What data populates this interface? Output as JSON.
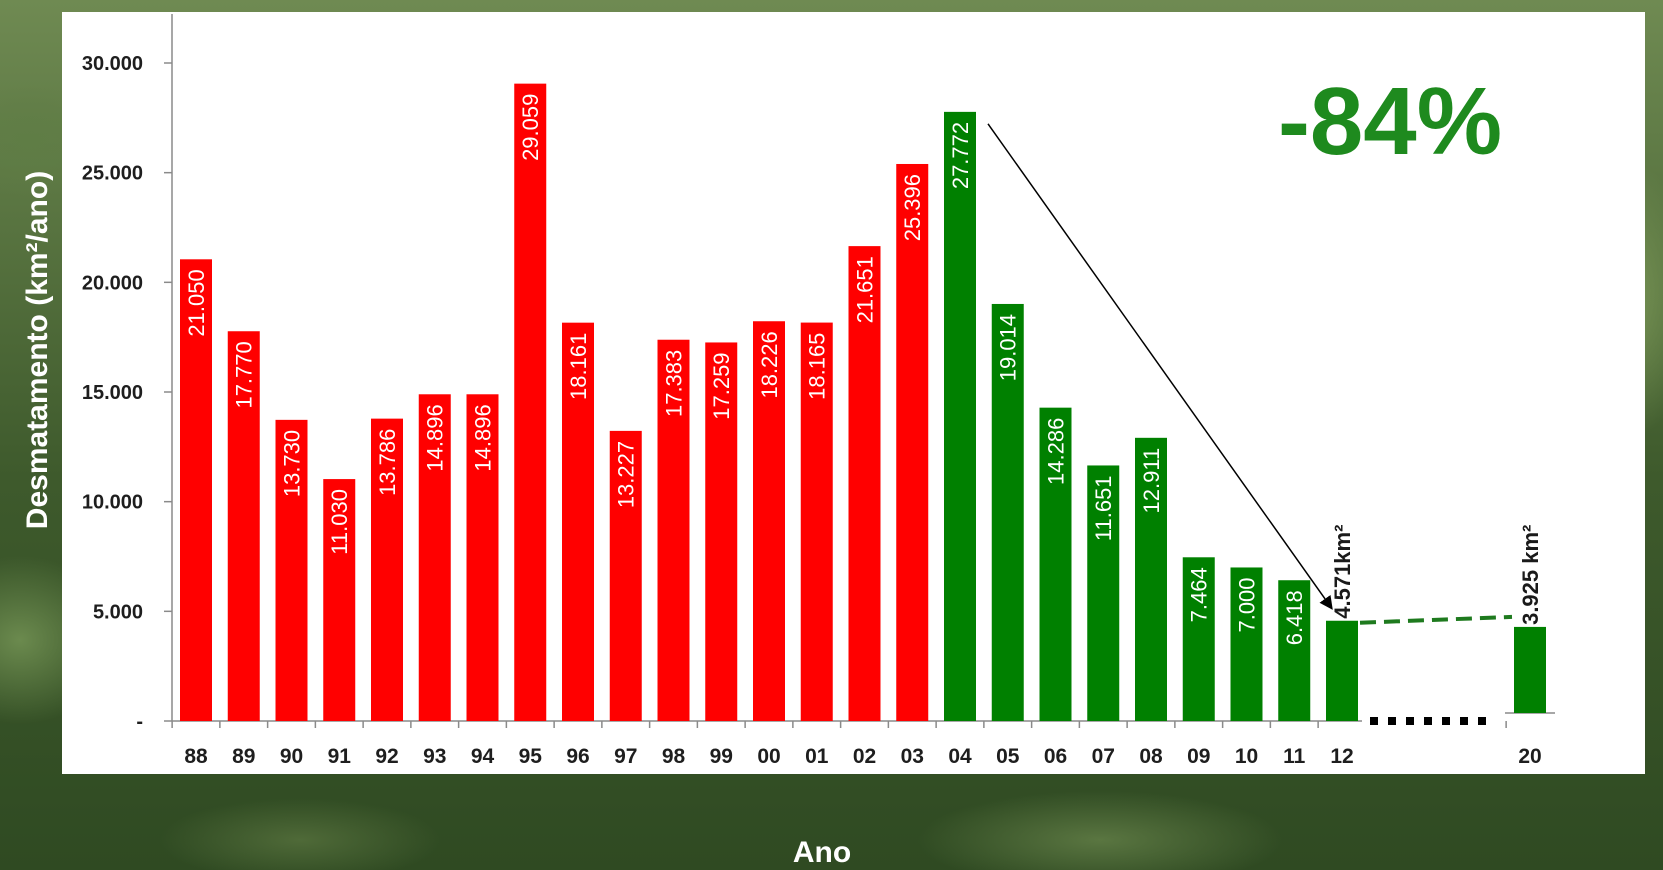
{
  "chart_data": {
    "type": "bar",
    "xlabel": "Ano",
    "ylabel": "Desmatamento (km²/ano)",
    "ylim": [
      0,
      30000
    ],
    "yticks": [
      {
        "value": 0,
        "label": "-"
      },
      {
        "value": 5000,
        "label": "5.000"
      },
      {
        "value": 10000,
        "label": "10.000"
      },
      {
        "value": 15000,
        "label": "15.000"
      },
      {
        "value": 20000,
        "label": "20.000"
      },
      {
        "value": 25000,
        "label": "25.000"
      },
      {
        "value": 30000,
        "label": "30.000"
      }
    ],
    "categories": [
      "88",
      "89",
      "90",
      "91",
      "92",
      "93",
      "94",
      "95",
      "96",
      "97",
      "98",
      "99",
      "00",
      "01",
      "02",
      "03",
      "04",
      "05",
      "06",
      "07",
      "08",
      "09",
      "10",
      "11",
      "12",
      "20"
    ],
    "values": [
      21050,
      17770,
      13730,
      11030,
      13786,
      14896,
      14896,
      29059,
      18161,
      13227,
      17383,
      17259,
      18226,
      18165,
      21651,
      25396,
      27772,
      19014,
      14286,
      11651,
      12911,
      7464,
      7000,
      6418,
      4571,
      3925
    ],
    "labels": [
      "21.050",
      "17.770",
      "13.730",
      "11.030",
      "13.786",
      "14.896",
      "14.896",
      "29.059",
      "18.161",
      "13.227",
      "17.383",
      "17.259",
      "18.226",
      "18.165",
      "21.651",
      "25.396",
      "27.772",
      "19.014",
      "14.286",
      "11.651",
      "12.911",
      "7.464",
      "7.000",
      "6.418",
      "4.571km²",
      "3.925 km²"
    ],
    "colors": [
      "#ff0000",
      "#ff0000",
      "#ff0000",
      "#ff0000",
      "#ff0000",
      "#ff0000",
      "#ff0000",
      "#ff0000",
      "#ff0000",
      "#ff0000",
      "#ff0000",
      "#ff0000",
      "#ff0000",
      "#ff0000",
      "#ff0000",
      "#ff0000",
      "#008000",
      "#008000",
      "#008000",
      "#008000",
      "#008000",
      "#008000",
      "#008000",
      "#008000",
      "#008000",
      "#008000"
    ],
    "annotations": [
      {
        "text": "-84%",
        "color": "#1e8a1e"
      }
    ],
    "grid": false,
    "legend": "none"
  }
}
